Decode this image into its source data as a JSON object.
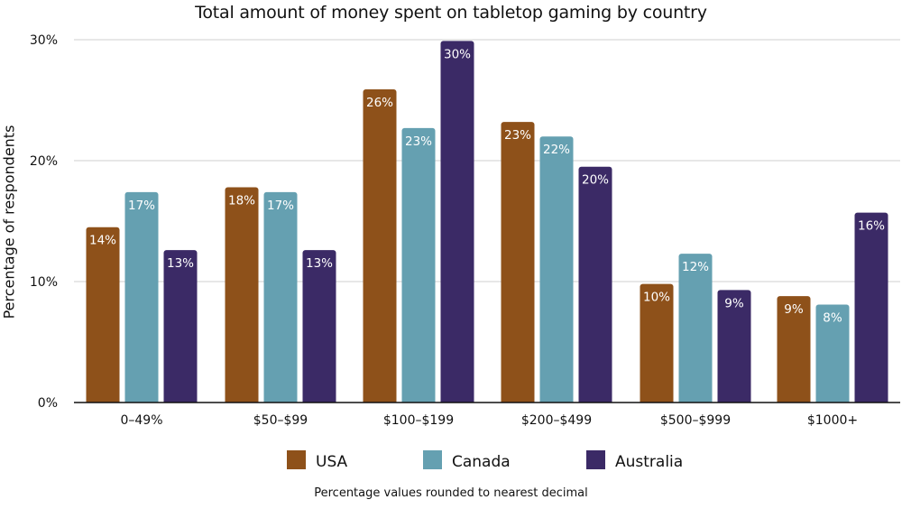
{
  "chart_data": {
    "type": "bar",
    "title": "Total amount of money spent on tabletop gaming by country",
    "xlabel": "",
    "ylabel": "Percentage of respondents",
    "ylim": [
      0,
      30
    ],
    "y_ticks": [
      "0%",
      "10%",
      "20%",
      "30%"
    ],
    "y_tick_values": [
      0,
      10,
      20,
      30
    ],
    "categories": [
      "0–49%",
      "$50–$99",
      "$100–$199",
      "$200–$499",
      "$500–$999",
      "$1000+"
    ],
    "series": [
      {
        "name": "USA",
        "color": "#8E511A",
        "values": [
          14.5,
          17.8,
          25.9,
          23.2,
          9.8,
          8.8
        ],
        "labels": [
          "14%",
          "18%",
          "26%",
          "23%",
          "10%",
          "9%"
        ]
      },
      {
        "name": "Canada",
        "color": "#65A0B1",
        "values": [
          17.4,
          17.4,
          22.7,
          22.0,
          12.3,
          8.1
        ],
        "labels": [
          "17%",
          "17%",
          "23%",
          "22%",
          "12%",
          "8%"
        ]
      },
      {
        "name": "Australia",
        "color": "#3B2A66",
        "values": [
          12.6,
          12.6,
          29.9,
          19.5,
          9.3,
          15.7
        ],
        "labels": [
          "13%",
          "13%",
          "30%",
          "20%",
          "9%",
          "16%"
        ]
      }
    ],
    "legend": {
      "position": "bottom-center",
      "items": [
        "USA",
        "Canada",
        "Australia"
      ]
    },
    "grid": true,
    "footnote": "Percentage values rounded to nearest decimal"
  }
}
